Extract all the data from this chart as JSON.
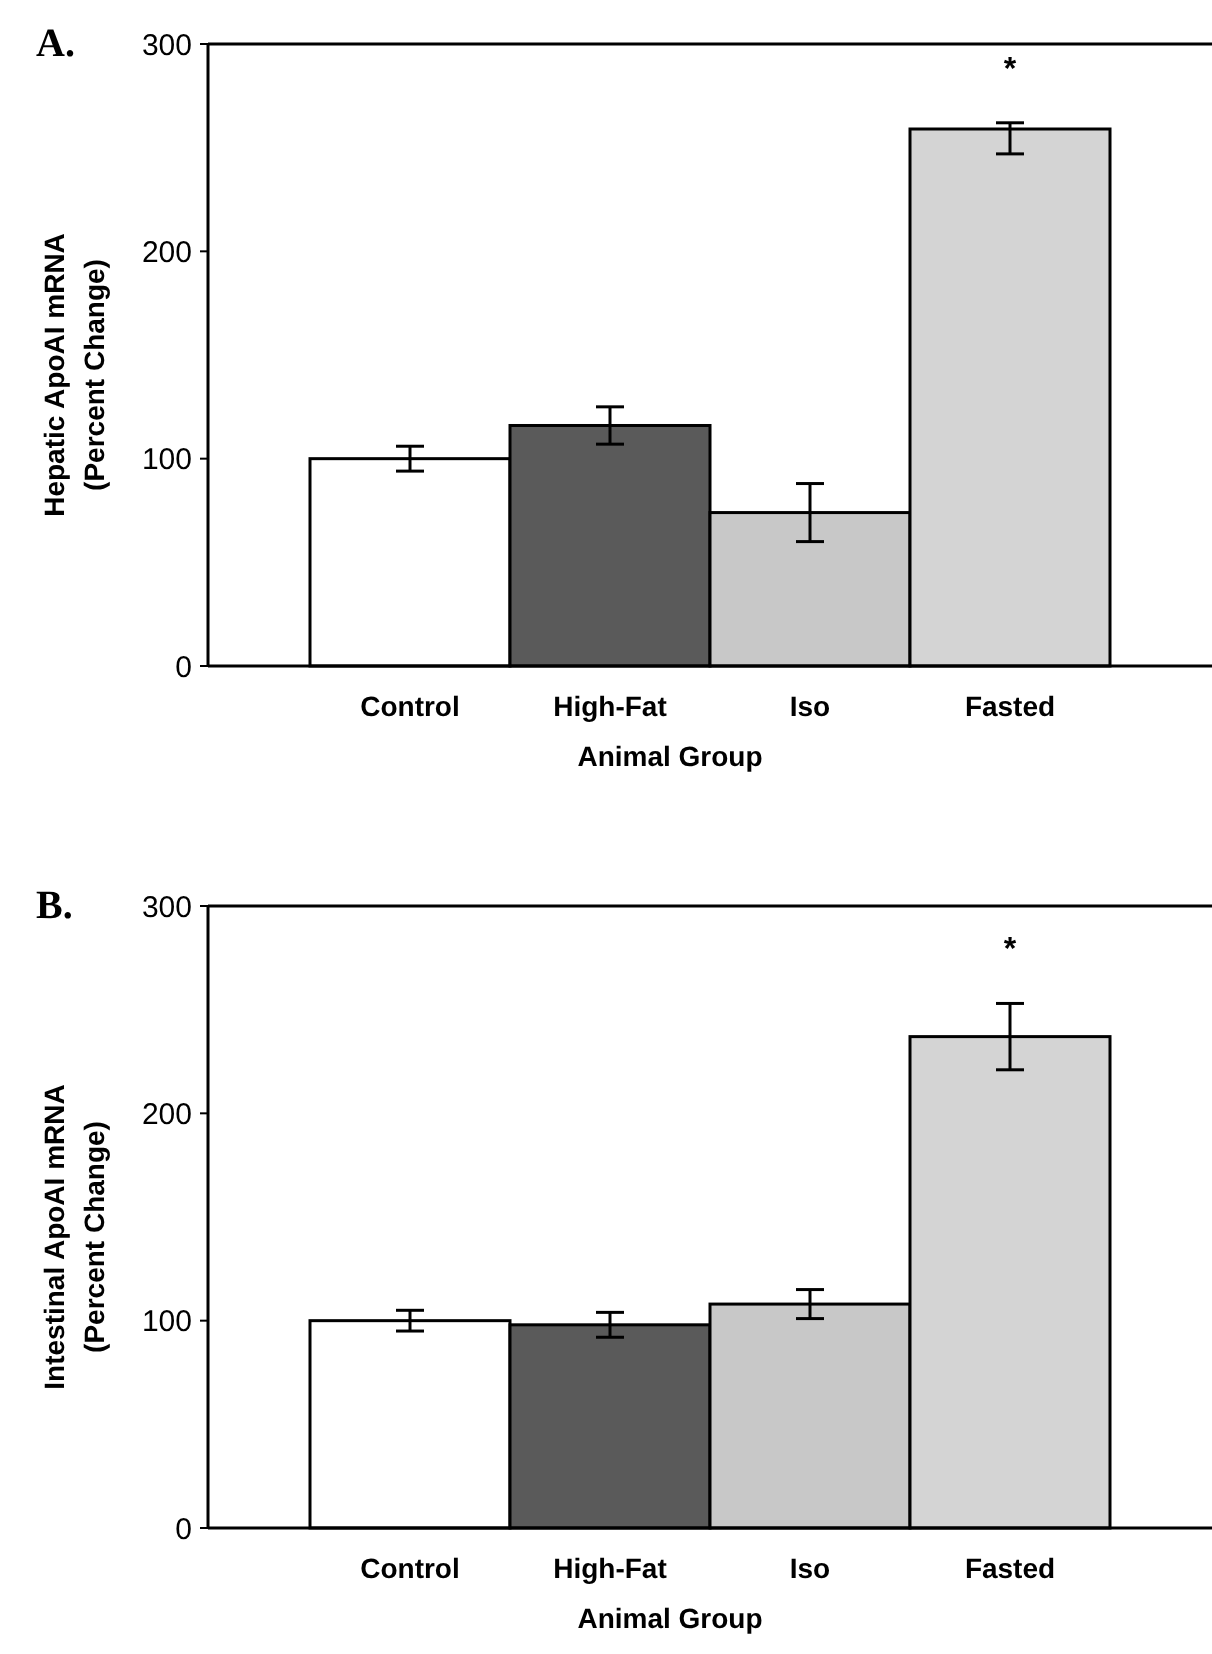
{
  "chart_data": [
    {
      "type": "bar",
      "title": "A.",
      "xlabel": "Animal Group",
      "ylabel": "Hepatic ApoAI mRNA\n(Percent Change)",
      "categories": [
        "Control",
        "High-Fat",
        "Iso",
        "Fasted"
      ],
      "values": [
        100,
        116,
        74,
        259
      ],
      "errors": [
        6,
        9,
        14,
        [
          247,
          262
        ]
      ],
      "colors": [
        "#ffffff",
        "#5a5a5a",
        "#c8c8c8",
        "#d4d4d4"
      ],
      "ylim": [
        0,
        300
      ],
      "yticks": [
        0,
        100,
        200,
        300
      ],
      "grid": false,
      "annotations": [
        "*"
      ]
    },
    {
      "type": "bar",
      "title": "B.",
      "xlabel": "Animal Group",
      "ylabel": "Intestinal ApoAI mRNA\n(Percent Change)",
      "categories": [
        "Control",
        "High-Fat",
        "Iso",
        "Fasted"
      ],
      "values": [
        100,
        98,
        108,
        237
      ],
      "errors": [
        5,
        6,
        7,
        16
      ],
      "colors": [
        "#ffffff",
        "#5a5a5a",
        "#c8c8c8",
        "#d4d4d4"
      ],
      "ylim": [
        0,
        300
      ],
      "yticks": [
        0,
        100,
        200,
        300
      ],
      "grid": false,
      "annotations": [
        "*"
      ]
    }
  ]
}
